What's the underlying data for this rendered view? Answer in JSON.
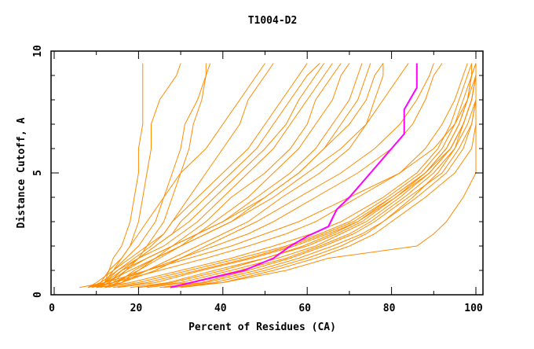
{
  "chart_data": {
    "type": "line",
    "title": "T1004-D2",
    "xlabel": "Percent of Residues (CA)",
    "ylabel": "Distance Cutoff, A",
    "xlim": [
      0,
      100
    ],
    "ylim": [
      0,
      10
    ],
    "xticks": [
      0,
      20,
      40,
      60,
      80,
      100
    ],
    "yticks": [
      0,
      5,
      10
    ],
    "grid": false,
    "colors": {
      "models": "#ff8c00",
      "highlight": "#ff00ff"
    },
    "shared_y": [
      0.3,
      0.5,
      1,
      1.5,
      2,
      2.5,
      3,
      4,
      5,
      6,
      7,
      8,
      9,
      9.5
    ],
    "series": [
      [
        28,
        38,
        50,
        60,
        68,
        74,
        78,
        86,
        93,
        97,
        99,
        100,
        100,
        100
      ],
      [
        25,
        35,
        46,
        56,
        64,
        71,
        76,
        84,
        92,
        96,
        99,
        100,
        100,
        100
      ],
      [
        22,
        32,
        44,
        55,
        63,
        70,
        75,
        83,
        90,
        95,
        98,
        100,
        100,
        100
      ],
      [
        30,
        40,
        52,
        62,
        70,
        76,
        80,
        88,
        95,
        99,
        100,
        100,
        100,
        100
      ],
      [
        20,
        30,
        42,
        53,
        62,
        68,
        74,
        82,
        89,
        94,
        97,
        99,
        100,
        100
      ],
      [
        18,
        27,
        38,
        50,
        60,
        67,
        73,
        81,
        88,
        93,
        96,
        98,
        99,
        100
      ],
      [
        15,
        24,
        35,
        47,
        57,
        65,
        72,
        80,
        88,
        93,
        96,
        98,
        99,
        100
      ],
      [
        12,
        20,
        32,
        44,
        55,
        63,
        70,
        79,
        87,
        92,
        95,
        97,
        99,
        99
      ],
      [
        10,
        18,
        30,
        42,
        52,
        61,
        68,
        78,
        86,
        91,
        94,
        96,
        98,
        99
      ],
      [
        26,
        36,
        48,
        58,
        66,
        73,
        78,
        85,
        91,
        95,
        97,
        99,
        100,
        100
      ],
      [
        8,
        14,
        25,
        36,
        46,
        55,
        62,
        72,
        82,
        88,
        92,
        95,
        97,
        98
      ],
      [
        28,
        40,
        55,
        65,
        86,
        90,
        93,
        97,
        100,
        100,
        100,
        100,
        100,
        100
      ],
      [
        14,
        22,
        34,
        46,
        56,
        64,
        71,
        80,
        88,
        94,
        97,
        99,
        100,
        100
      ],
      [
        20,
        28,
        40,
        50,
        59,
        66,
        72,
        81,
        89,
        94,
        97,
        99,
        100,
        100
      ],
      [
        6,
        12,
        22,
        32,
        42,
        50,
        58,
        70,
        82,
        90,
        95,
        98,
        100,
        100
      ],
      [
        9,
        14,
        22,
        30,
        38,
        46,
        52,
        62,
        72,
        80,
        85,
        88,
        90,
        92
      ],
      [
        11,
        16,
        24,
        30,
        36,
        42,
        48,
        58,
        68,
        76,
        82,
        86,
        89,
        90
      ],
      [
        8,
        12,
        18,
        24,
        30,
        36,
        42,
        52,
        60,
        68,
        74,
        78,
        82,
        84
      ],
      [
        10,
        14,
        20,
        25,
        30,
        34,
        40,
        50,
        58,
        64,
        70,
        74,
        76,
        78
      ],
      [
        12,
        16,
        22,
        28,
        34,
        40,
        46,
        54,
        63,
        70,
        74,
        76,
        78,
        78
      ],
      [
        8,
        10,
        14,
        18,
        22,
        26,
        28,
        34,
        40,
        46,
        50,
        54,
        58,
        60
      ],
      [
        9,
        11,
        13,
        16,
        18,
        20,
        22,
        26,
        30,
        36,
        40,
        44,
        48,
        50
      ],
      [
        10,
        12,
        14,
        16,
        18,
        19,
        20,
        21,
        22,
        23,
        23,
        25,
        29,
        30
      ],
      [
        11,
        12,
        13,
        14,
        16,
        17,
        18,
        19,
        20,
        20,
        21,
        21,
        21,
        21
      ],
      [
        8,
        11,
        15,
        20,
        26,
        30,
        34,
        40,
        46,
        52,
        56,
        60,
        64,
        66
      ],
      [
        10,
        13,
        17,
        22,
        28,
        34,
        38,
        46,
        52,
        58,
        62,
        66,
        68,
        70
      ],
      [
        12,
        14,
        17,
        20,
        24,
        28,
        30,
        36,
        42,
        48,
        52,
        56,
        60,
        63
      ],
      [
        9,
        12,
        15,
        19,
        23,
        26,
        28,
        32,
        36,
        40,
        44,
        46,
        50,
        52
      ],
      [
        10,
        12,
        14,
        17,
        20,
        22,
        24,
        26,
        28,
        30,
        31,
        34,
        36,
        37
      ],
      [
        11,
        13,
        16,
        20,
        24,
        28,
        32,
        38,
        44,
        50,
        55,
        58,
        62,
        64
      ],
      [
        13,
        16,
        20,
        24,
        28,
        32,
        36,
        42,
        50,
        56,
        60,
        62,
        66,
        68
      ],
      [
        10,
        13,
        16,
        20,
        22,
        24,
        26,
        28,
        30,
        32,
        33,
        35,
        36,
        36
      ],
      [
        12,
        15,
        19,
        24,
        30,
        36,
        42,
        50,
        58,
        64,
        68,
        72,
        74,
        75
      ],
      [
        9,
        12,
        16,
        22,
        28,
        34,
        40,
        48,
        56,
        62,
        66,
        70,
        72,
        73
      ]
    ],
    "highlight": {
      "x": [
        27.5,
        35,
        45,
        52,
        56,
        60,
        65,
        67,
        70,
        75,
        80,
        83,
        83,
        86,
        86
      ],
      "y": [
        0.3,
        0.6,
        1.0,
        1.5,
        2.0,
        2.4,
        2.8,
        3.5,
        4.0,
        5.0,
        6.0,
        6.6,
        7.6,
        8.5,
        9.5
      ]
    }
  }
}
